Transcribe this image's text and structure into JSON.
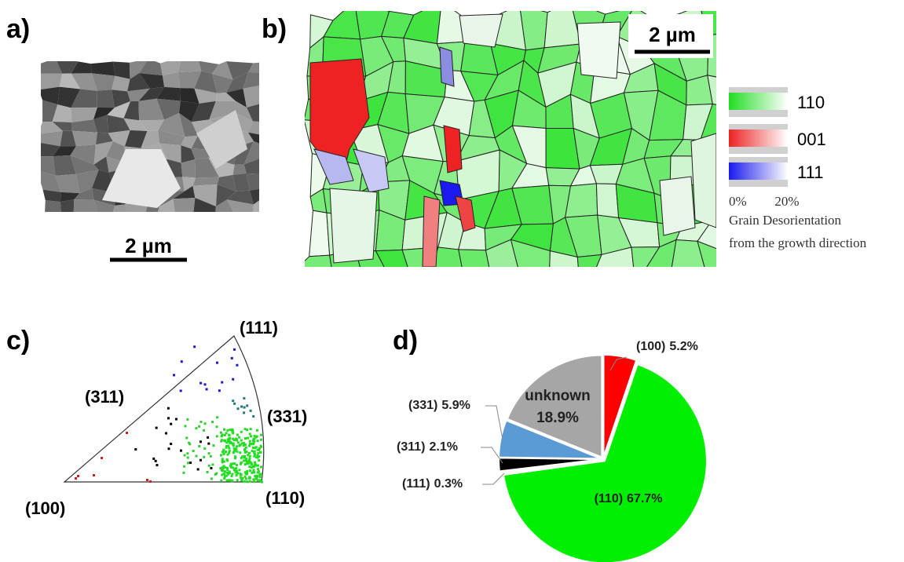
{
  "panels": {
    "a": {
      "label": "a)",
      "scale_bar": "2 µm"
    },
    "b": {
      "label": "b)",
      "scale_bar": "2 µm",
      "legend": [
        {
          "label": "110",
          "color": "#22dd22"
        },
        {
          "label": "001",
          "color": "#ee2222"
        },
        {
          "label": "111",
          "color": "#1a1aee"
        }
      ],
      "legend_min": "0%",
      "legend_max": "20%",
      "caption": [
        "Grain Desorientation",
        "from the growth direction"
      ]
    },
    "c": {
      "label": "c)",
      "poles": [
        "(111)",
        "(311)",
        "(331)",
        "(100)",
        "(110)"
      ]
    },
    "d": {
      "label": "d)"
    }
  },
  "chart_data": {
    "type": "pie",
    "categories": [
      "(100)",
      "(110)",
      "(111)",
      "(311)",
      "(331)",
      "unknown"
    ],
    "values": [
      5.2,
      67.7,
      0.3,
      2.1,
      5.9,
      18.9
    ],
    "value_labels": [
      "5.2%",
      "67.7%",
      "0.3%",
      "2.1%",
      "5.9%",
      "18.9%"
    ],
    "colors": [
      "#ff0000",
      "#00ee00",
      "#dddddd",
      "#000000",
      "#5b9bd5",
      "#a6a6a6"
    ]
  }
}
